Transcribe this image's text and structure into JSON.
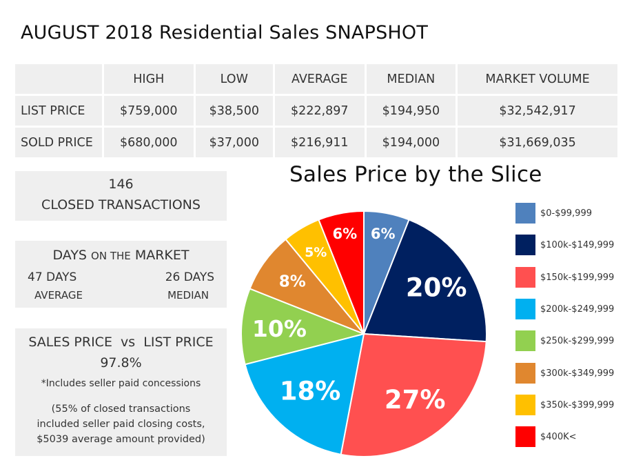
{
  "title": "AUGUST 2018 Residential Sales SNAPSHOT",
  "stats_table": {
    "headers": [
      "",
      "HIGH",
      "LOW",
      "AVERAGE",
      "MEDIAN",
      "MARKET VOLUME"
    ],
    "rows": [
      {
        "label": "LIST PRICE",
        "values": [
          "$759,000",
          "$38,500",
          "$222,897",
          "$194,950",
          "$32,542,917"
        ]
      },
      {
        "label": "SOLD PRICE",
        "values": [
          "$680,000",
          "$37,000",
          "$216,911",
          "$194,000",
          "$31,669,035"
        ]
      }
    ]
  },
  "closed": {
    "count": "146",
    "label": "CLOSED TRANSACTIONS"
  },
  "days_on_market": {
    "title_a": "DAYS",
    "title_b": "ON THE",
    "title_c": "MARKET",
    "average_value": "47 DAYS",
    "average_label": "AVERAGE",
    "median_value": "26 DAYS",
    "median_label": "MEDIAN"
  },
  "sales_vs_list": {
    "title": "SALES PRICE  vs  LIST PRICE",
    "percent": "97.8%",
    "note": "*Includes seller paid concessions",
    "para_line1": "(55% of closed transactions",
    "para_line2": "included seller paid closing costs,",
    "para_line3": "$5039 average amount provided)"
  },
  "chart_data": {
    "type": "pie",
    "title": "Sales Price by the Slice",
    "start_angle_deg": 0,
    "direction": "clockwise",
    "legend_position": "right",
    "slices": [
      {
        "label": "$0-$99,999",
        "value": 6,
        "display": "6%",
        "color": "#4f81bd"
      },
      {
        "label": "$100k-$149,999",
        "value": 20,
        "display": "20%",
        "color": "#002060"
      },
      {
        "label": "$150k-$199,999",
        "value": 27,
        "display": "27%",
        "color": "#ff5050"
      },
      {
        "label": "$200k-$249,999",
        "value": 18,
        "display": "18%",
        "color": "#00b0f0"
      },
      {
        "label": "$250k-$299,999",
        "value": 10,
        "display": "10%",
        "color": "#92d050"
      },
      {
        "label": "$300k-$349,999",
        "value": 8,
        "display": "8%",
        "color": "#e0872f"
      },
      {
        "label": "$350k-$399,999",
        "value": 5,
        "display": "5%",
        "color": "#ffc000"
      },
      {
        "label": "$400K<",
        "value": 6,
        "display": "6%",
        "color": "#ff0000"
      }
    ]
  }
}
